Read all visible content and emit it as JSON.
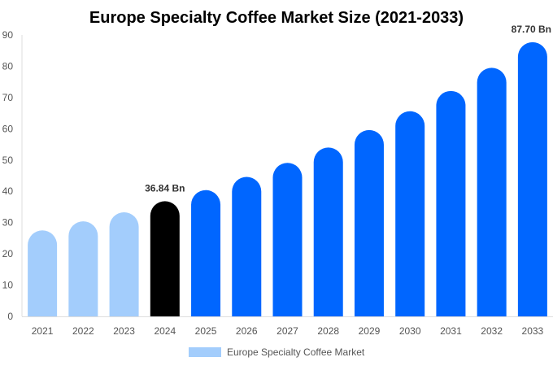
{
  "chart_data": {
    "type": "bar",
    "title": "Europe Specialty Coffee Market Size (2021-2033)",
    "xlabel": "",
    "ylabel": "",
    "categories": [
      "2021",
      "2022",
      "2023",
      "2024",
      "2025",
      "2026",
      "2027",
      "2028",
      "2029",
      "2030",
      "2031",
      "2032",
      "2033"
    ],
    "series": [
      {
        "name": "Europe Specialty Coffee Market",
        "values": [
          27.5,
          30.4,
          33.3,
          36.84,
          40.4,
          44.6,
          49.1,
          54.0,
          59.6,
          65.6,
          72.1,
          79.5,
          87.7
        ]
      }
    ],
    "data_labels": [
      {
        "category": "2024",
        "text": "36.84 Bn"
      },
      {
        "category": "2033",
        "text": "87.70 Bn"
      }
    ],
    "ylim": [
      0,
      90
    ],
    "yticks": [
      0,
      10,
      20,
      30,
      40,
      50,
      60,
      70,
      80,
      90
    ],
    "grid": false,
    "legend_position": "bottom",
    "colors": {
      "historical": "#a3cdfc",
      "current": "#000000",
      "forecast": "#0066ff"
    },
    "color_by_category": [
      "historical",
      "historical",
      "historical",
      "current",
      "forecast",
      "forecast",
      "forecast",
      "forecast",
      "forecast",
      "forecast",
      "forecast",
      "forecast",
      "forecast"
    ]
  }
}
